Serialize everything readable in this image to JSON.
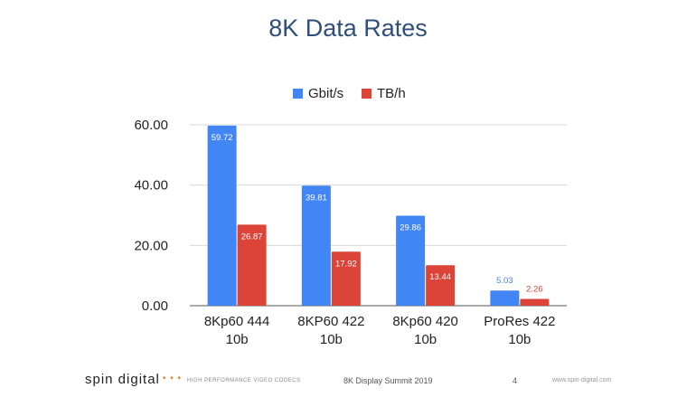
{
  "slide": {
    "title": "8K Data Rates"
  },
  "footer": {
    "logo": "spin digital",
    "dots": "• • •",
    "tagline": "HIGH PERFORMANCE VIDEO CODECS",
    "event": "8K Display Summit 2019",
    "page": "4",
    "url": "www.spin-digital.com"
  },
  "chart_data": {
    "type": "bar",
    "title": "",
    "xlabel": "",
    "ylabel": "",
    "categories": [
      [
        "8Kp60 444",
        "10b"
      ],
      [
        "8KP60 422",
        "10b"
      ],
      [
        "8Kp60 420",
        "10b"
      ],
      [
        "ProRes 422",
        "10b"
      ]
    ],
    "series": [
      {
        "name": "Gbit/s",
        "color": "#4285f4",
        "values": [
          59.72,
          39.81,
          29.86,
          5.03
        ],
        "labels": [
          "59.72",
          "39.81",
          "29.86",
          "5.03"
        ]
      },
      {
        "name": "TB/h",
        "color": "#db4437",
        "values": [
          26.87,
          17.92,
          13.44,
          2.26
        ],
        "labels": [
          "26.87",
          "17.92",
          "13.44",
          "2.26"
        ]
      }
    ],
    "ylim": [
      0,
      60
    ],
    "yticks": [
      "0.00",
      "20.00",
      "40.00",
      "60.00"
    ],
    "ytick_values": [
      0,
      20,
      40,
      60
    ],
    "grid": true,
    "legend": "top-center"
  }
}
